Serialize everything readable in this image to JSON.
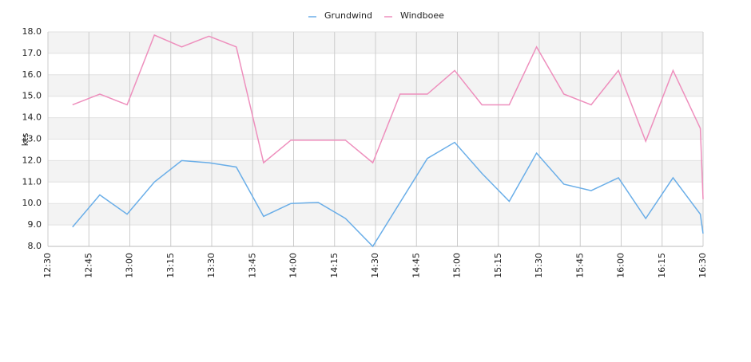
{
  "chart_data": {
    "type": "line",
    "y_label": "kts",
    "x": [
      "12:39",
      "12:49",
      "12:59",
      "13:09",
      "13:19",
      "13:29",
      "13:39",
      "13:49",
      "13:59",
      "14:09",
      "14:19",
      "14:29",
      "14:39",
      "14:49",
      "14:59",
      "15:09",
      "15:19",
      "15:29",
      "15:39",
      "15:49",
      "15:59",
      "16:09",
      "16:19",
      "16:29",
      "16:30"
    ],
    "series": [
      {
        "name": "Grundwind",
        "color": "#6aaee8",
        "values": [
          8.9,
          10.4,
          9.5,
          11.0,
          12.0,
          11.9,
          11.7,
          9.4,
          10.0,
          10.05,
          9.3,
          8.0,
          10.05,
          12.1,
          12.85,
          11.4,
          10.1,
          12.35,
          10.9,
          10.6,
          11.2,
          9.3,
          11.2,
          9.5,
          8.6
        ]
      },
      {
        "name": "Windboee",
        "color": "#ee8fbd",
        "values": [
          14.6,
          15.1,
          14.6,
          17.85,
          17.3,
          17.8,
          17.3,
          11.9,
          12.95,
          12.95,
          12.95,
          11.9,
          15.1,
          15.1,
          16.2,
          14.6,
          14.6,
          17.3,
          15.1,
          14.6,
          16.2,
          12.9,
          16.2,
          13.5,
          10.2
        ]
      }
    ],
    "xlim": [
      "12:30",
      "16:30"
    ],
    "xticks": [
      "12:30",
      "12:45",
      "13:00",
      "13:15",
      "13:30",
      "13:45",
      "14:00",
      "14:15",
      "14:30",
      "14:45",
      "15:00",
      "15:15",
      "15:30",
      "15:45",
      "16:00",
      "16:15",
      "16:30"
    ],
    "ylim": [
      8,
      18
    ],
    "yticks": [
      {
        "value": 8,
        "label": "8.0"
      },
      {
        "value": 9,
        "label": "9.0"
      },
      {
        "value": 10,
        "label": "10.0"
      },
      {
        "value": 11,
        "label": "11.0"
      },
      {
        "value": 12,
        "label": "12.0"
      },
      {
        "value": 13,
        "label": "13.0"
      },
      {
        "value": 14,
        "label": "14.0"
      },
      {
        "value": 15,
        "label": "15.0"
      },
      {
        "value": 16,
        "label": "16.0"
      },
      {
        "value": 17,
        "label": "17.0"
      },
      {
        "value": 18,
        "label": "18.0"
      }
    ],
    "grid": true,
    "legend": "top"
  }
}
